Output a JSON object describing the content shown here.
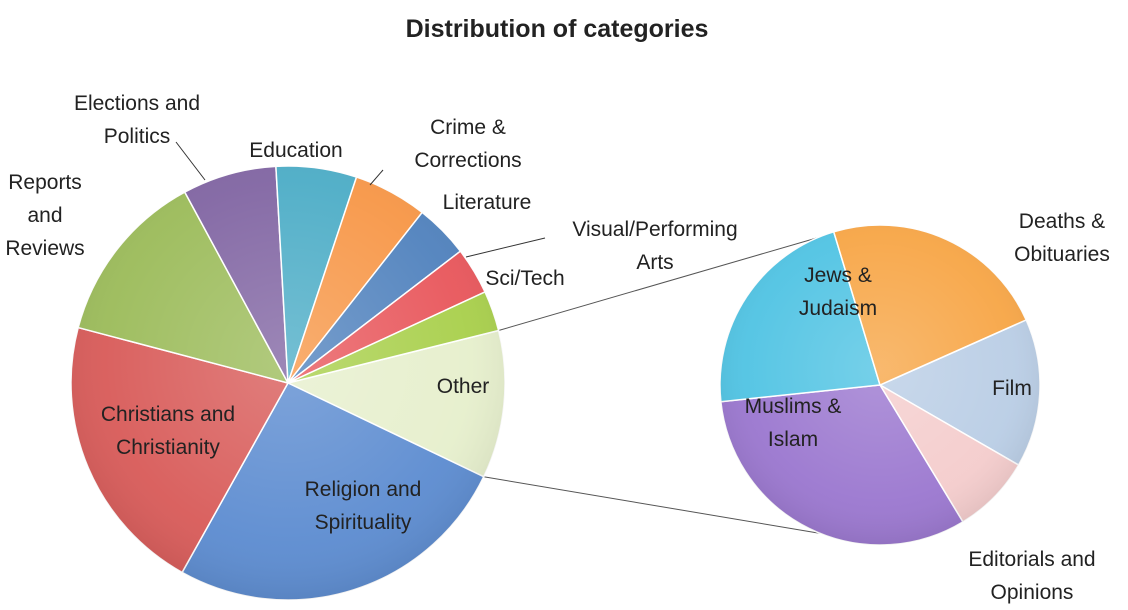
{
  "chart_data": {
    "type": "pie",
    "title": "Distribution of categories",
    "main_pie": {
      "slices": [
        {
          "label": "Other",
          "value": 11.0,
          "color": "#e6efcc"
        },
        {
          "label": "Religion and Spirituality",
          "value": 26.0,
          "color": "#5b8bd0"
        },
        {
          "label": "Christians and Christianity",
          "value": 21.0,
          "color": "#d85a58"
        },
        {
          "label": "Reports and Reviews",
          "value": 13.0,
          "color": "#9bbb59"
        },
        {
          "label": "Elections and Politics",
          "value": 7.0,
          "color": "#8064a2"
        },
        {
          "label": "Education",
          "value": 6.0,
          "color": "#4bacc6"
        },
        {
          "label": "Crime & Corrections",
          "value": 5.5,
          "color": "#f79646"
        },
        {
          "label": "Literature",
          "value": 4.0,
          "color": "#4f81bd"
        },
        {
          "label": "Visual/Performing Arts",
          "value": 3.5,
          "color": "#e8555a"
        },
        {
          "label": "Sci/Tech",
          "value": 3.0,
          "color": "#a8cf4a"
        }
      ]
    },
    "breakout_pie": {
      "of_slice": "Other",
      "slices": [
        {
          "label": "Deaths & Obituaries",
          "value": 15.0,
          "color": "#b9cde5"
        },
        {
          "label": "Film",
          "value": 8.0,
          "color": "#f4cccc"
        },
        {
          "label": "Editorials and Opinions",
          "value": 32.0,
          "color": "#9a76cf"
        },
        {
          "label": "Muslims & Islam",
          "value": 22.0,
          "color": "#4fc3e3"
        },
        {
          "label": "Jews & Judaism",
          "value": 23.0,
          "color": "#f7a545"
        }
      ]
    }
  }
}
